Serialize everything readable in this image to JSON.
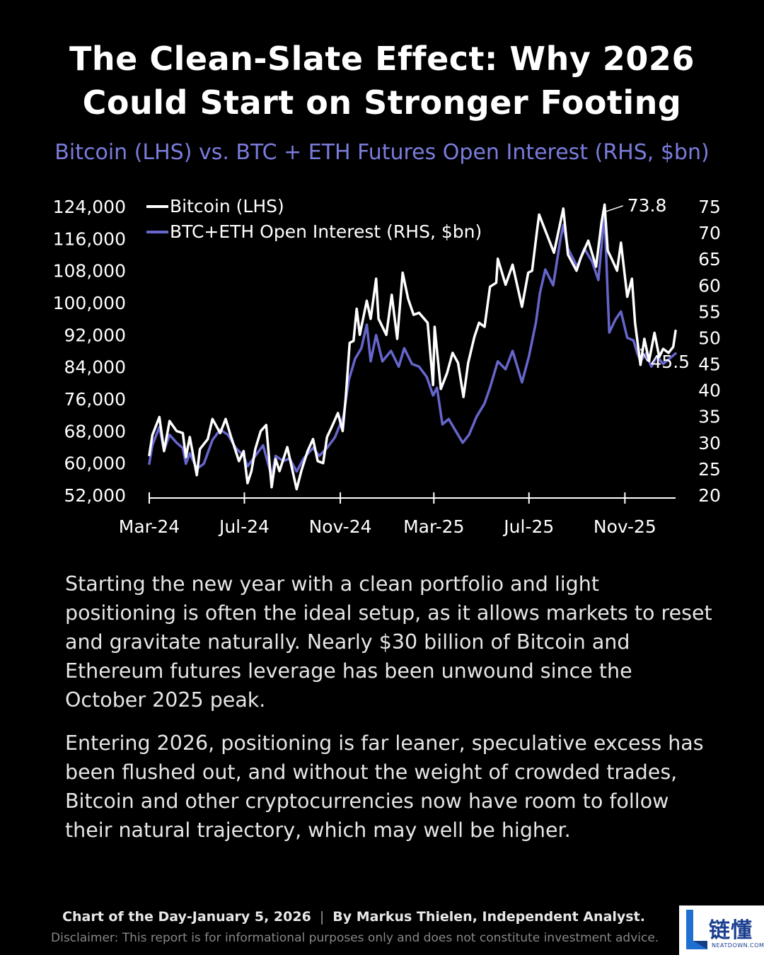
{
  "header": {
    "title_line1": "The Clean-Slate Effect: Why 2026",
    "title_line2": "Could Start on Stronger Footing",
    "subtitle": "Bitcoin (LHS) vs. BTC + ETH Futures Open Interest (RHS, $bn)"
  },
  "colors": {
    "btc": "#ffffff",
    "oi": "#6666cc",
    "subtitle": "#7b7cdc",
    "background": "#000000"
  },
  "chart_data": {
    "type": "line",
    "legend_position": "top-left",
    "grid": false,
    "x_ticks": [
      "Mar-24",
      "Jul-24",
      "Nov-24",
      "Mar-25",
      "Jul-25",
      "Nov-25"
    ],
    "x_range": [
      "2024-03-01",
      "2026-01-05"
    ],
    "y_left": {
      "ticks": [
        "124,000",
        "116,000",
        "108,000",
        "100,000",
        "92,000",
        "84,000",
        "76,000",
        "68,000",
        "60,000",
        "52,000"
      ],
      "range": [
        52000,
        124000
      ]
    },
    "y_right": {
      "ticks": [
        "75",
        "70",
        "65",
        "60",
        "55",
        "50",
        "45",
        "40",
        "35",
        "30",
        "25",
        "20"
      ],
      "range": [
        20,
        75
      ]
    },
    "annotations": [
      {
        "text": "73.8",
        "date": "2025-10-06",
        "series": "BTC+ETH Open Interest (RHS, $bn)",
        "value": 73.8
      },
      {
        "text": "45.5",
        "date": "2025-11-21",
        "series": "BTC+ETH Open Interest (RHS, $bn)",
        "value": 45.5
      }
    ],
    "series": [
      {
        "name": "Bitcoin (LHS)",
        "axis": "left",
        "points": [
          [
            "2024-03-01",
            62000
          ],
          [
            "2024-03-05",
            67000
          ],
          [
            "2024-03-14",
            71500
          ],
          [
            "2024-03-20",
            63000
          ],
          [
            "2024-03-27",
            70500
          ],
          [
            "2024-04-05",
            68000
          ],
          [
            "2024-04-13",
            67500
          ],
          [
            "2024-04-17",
            61500
          ],
          [
            "2024-04-22",
            66500
          ],
          [
            "2024-05-01",
            57000
          ],
          [
            "2024-05-05",
            63500
          ],
          [
            "2024-05-15",
            66000
          ],
          [
            "2024-05-21",
            71000
          ],
          [
            "2024-05-31",
            67500
          ],
          [
            "2024-06-07",
            71000
          ],
          [
            "2024-06-14",
            66500
          ],
          [
            "2024-06-24",
            60500
          ],
          [
            "2024-06-30",
            63000
          ],
          [
            "2024-07-05",
            55000
          ],
          [
            "2024-07-10",
            58000
          ],
          [
            "2024-07-15",
            63500
          ],
          [
            "2024-07-22",
            68000
          ],
          [
            "2024-07-29",
            69500
          ],
          [
            "2024-08-05",
            54000
          ],
          [
            "2024-08-10",
            61000
          ],
          [
            "2024-08-15",
            58000
          ],
          [
            "2024-08-25",
            64000
          ],
          [
            "2024-09-06",
            53500
          ],
          [
            "2024-09-12",
            58000
          ],
          [
            "2024-09-20",
            63000
          ],
          [
            "2024-09-27",
            66000
          ],
          [
            "2024-10-03",
            60500
          ],
          [
            "2024-10-10",
            60000
          ],
          [
            "2024-10-15",
            66500
          ],
          [
            "2024-10-21",
            69000
          ],
          [
            "2024-10-29",
            72500
          ],
          [
            "2024-11-04",
            68000
          ],
          [
            "2024-11-08",
            76500
          ],
          [
            "2024-11-13",
            90000
          ],
          [
            "2024-11-18",
            90500
          ],
          [
            "2024-11-22",
            98500
          ],
          [
            "2024-11-26",
            92000
          ],
          [
            "2024-12-05",
            100500
          ],
          [
            "2024-12-10",
            96000
          ],
          [
            "2024-12-17",
            106000
          ],
          [
            "2024-12-20",
            96000
          ],
          [
            "2024-12-30",
            92000
          ],
          [
            "2025-01-06",
            102000
          ],
          [
            "2025-01-13",
            91000
          ],
          [
            "2025-01-20",
            107500
          ],
          [
            "2025-01-27",
            101000
          ],
          [
            "2025-02-03",
            97000
          ],
          [
            "2025-02-10",
            97500
          ],
          [
            "2025-02-21",
            95000
          ],
          [
            "2025-02-28",
            79500
          ],
          [
            "2025-03-02",
            94000
          ],
          [
            "2025-03-10",
            78500
          ],
          [
            "2025-03-18",
            82500
          ],
          [
            "2025-03-25",
            87500
          ],
          [
            "2025-04-01",
            85000
          ],
          [
            "2025-04-08",
            76500
          ],
          [
            "2025-04-14",
            85000
          ],
          [
            "2025-04-22",
            91500
          ],
          [
            "2025-04-28",
            95000
          ],
          [
            "2025-05-05",
            94000
          ],
          [
            "2025-05-12",
            104000
          ],
          [
            "2025-05-20",
            105000
          ],
          [
            "2025-05-22",
            111000
          ],
          [
            "2025-06-01",
            104500
          ],
          [
            "2025-06-10",
            109500
          ],
          [
            "2025-06-22",
            99000
          ],
          [
            "2025-06-30",
            107500
          ],
          [
            "2025-07-05",
            108000
          ],
          [
            "2025-07-11",
            117500
          ],
          [
            "2025-07-14",
            122000
          ],
          [
            "2025-07-22",
            118000
          ],
          [
            "2025-08-02",
            112500
          ],
          [
            "2025-08-14",
            123500
          ],
          [
            "2025-08-20",
            112000
          ],
          [
            "2025-08-31",
            108000
          ],
          [
            "2025-09-05",
            111000
          ],
          [
            "2025-09-15",
            115500
          ],
          [
            "2025-09-25",
            109000
          ],
          [
            "2025-10-02",
            120000
          ],
          [
            "2025-10-06",
            124500
          ],
          [
            "2025-10-10",
            113000
          ],
          [
            "2025-10-15",
            111000
          ],
          [
            "2025-10-22",
            108000
          ],
          [
            "2025-10-27",
            115000
          ],
          [
            "2025-11-04",
            101500
          ],
          [
            "2025-11-10",
            106000
          ],
          [
            "2025-11-14",
            95000
          ],
          [
            "2025-11-21",
            84500
          ],
          [
            "2025-11-26",
            91000
          ],
          [
            "2025-12-02",
            85500
          ],
          [
            "2025-12-09",
            92500
          ],
          [
            "2025-12-15",
            86500
          ],
          [
            "2025-12-20",
            88500
          ],
          [
            "2025-12-27",
            87500
          ],
          [
            "2026-01-02",
            89000
          ],
          [
            "2026-01-05",
            93000
          ]
        ]
      },
      {
        "name": "BTC+ETH Open Interest (RHS, $bn)",
        "axis": "right",
        "points": [
          [
            "2024-03-01",
            26000
          ],
          [
            "2024-03-05",
            29500
          ],
          [
            "2024-03-14",
            33000
          ],
          [
            "2024-03-20",
            28500
          ],
          [
            "2024-03-27",
            31500
          ],
          [
            "2024-04-05",
            30000
          ],
          [
            "2024-04-13",
            29000
          ],
          [
            "2024-04-17",
            26000
          ],
          [
            "2024-04-22",
            28000
          ],
          [
            "2024-05-01",
            25000
          ],
          [
            "2024-05-10",
            26000
          ],
          [
            "2024-05-21",
            30500
          ],
          [
            "2024-05-31",
            32500
          ],
          [
            "2024-06-10",
            31500
          ],
          [
            "2024-06-20",
            29000
          ],
          [
            "2024-06-30",
            27500
          ],
          [
            "2024-07-05",
            25500
          ],
          [
            "2024-07-15",
            27500
          ],
          [
            "2024-07-25",
            29500
          ],
          [
            "2024-08-05",
            23500
          ],
          [
            "2024-08-10",
            27500
          ],
          [
            "2024-08-20",
            26500
          ],
          [
            "2024-08-28",
            27000
          ],
          [
            "2024-09-06",
            24500
          ],
          [
            "2024-09-15",
            27000
          ],
          [
            "2024-09-27",
            29000
          ],
          [
            "2024-10-05",
            27500
          ],
          [
            "2024-10-15",
            29000
          ],
          [
            "2024-10-25",
            31000
          ],
          [
            "2024-11-05",
            35000
          ],
          [
            "2024-11-12",
            42000
          ],
          [
            "2024-11-20",
            46000
          ],
          [
            "2024-11-28",
            48000
          ],
          [
            "2024-12-05",
            52500
          ],
          [
            "2024-12-10",
            45500
          ],
          [
            "2024-12-17",
            50500
          ],
          [
            "2024-12-25",
            45500
          ],
          [
            "2025-01-05",
            47500
          ],
          [
            "2025-01-15",
            44500
          ],
          [
            "2025-01-22",
            48000
          ],
          [
            "2025-02-01",
            45000
          ],
          [
            "2025-02-10",
            44500
          ],
          [
            "2025-02-20",
            42500
          ],
          [
            "2025-02-28",
            39000
          ],
          [
            "2025-03-05",
            40500
          ],
          [
            "2025-03-12",
            33500
          ],
          [
            "2025-03-20",
            34500
          ],
          [
            "2025-03-28",
            32500
          ],
          [
            "2025-04-07",
            30000
          ],
          [
            "2025-04-15",
            31500
          ],
          [
            "2025-04-25",
            35000
          ],
          [
            "2025-05-05",
            37500
          ],
          [
            "2025-05-12",
            40500
          ],
          [
            "2025-05-22",
            45500
          ],
          [
            "2025-06-01",
            44000
          ],
          [
            "2025-06-10",
            47500
          ],
          [
            "2025-06-22",
            41500
          ],
          [
            "2025-07-01",
            46500
          ],
          [
            "2025-07-10",
            53000
          ],
          [
            "2025-07-15",
            58500
          ],
          [
            "2025-07-22",
            63000
          ],
          [
            "2025-08-01",
            60000
          ],
          [
            "2025-08-10",
            68500
          ],
          [
            "2025-08-14",
            71500
          ],
          [
            "2025-08-20",
            67000
          ],
          [
            "2025-09-01",
            63500
          ],
          [
            "2025-09-10",
            67000
          ],
          [
            "2025-09-20",
            64500
          ],
          [
            "2025-09-28",
            61000
          ],
          [
            "2025-10-06",
            73800
          ],
          [
            "2025-10-10",
            58000
          ],
          [
            "2025-10-12",
            51000
          ],
          [
            "2025-10-20",
            53500
          ],
          [
            "2025-10-27",
            55000
          ],
          [
            "2025-11-04",
            50000
          ],
          [
            "2025-11-12",
            49500
          ],
          [
            "2025-11-17",
            47000
          ],
          [
            "2025-11-21",
            45500
          ],
          [
            "2025-11-28",
            47000
          ],
          [
            "2025-12-05",
            44500
          ],
          [
            "2025-12-12",
            46500
          ],
          [
            "2025-12-20",
            45000
          ],
          [
            "2025-12-28",
            46000
          ],
          [
            "2026-01-05",
            47000
          ]
        ]
      }
    ]
  },
  "body": {
    "paragraph1": "Starting the new year with a clean portfolio and light positioning is often the ideal setup, as it allows markets to reset and gravitate naturally. Nearly $30 billion of Bitcoin and Ethereum futures leverage has been unwound since the October 2025 peak.",
    "paragraph2": "Entering 2026, positioning is far leaner, speculative excess has been flushed out, and without the weight of crowded trades, Bitcoin and other cryptocurrencies now have room to follow their natural trajectory, which may well be higher."
  },
  "footer": {
    "chart_of_day": "Chart of the Day-January 5, 2026",
    "separator": "|",
    "author": "By Markus Thielen, Independent Analyst.",
    "disclaimer": "Disclaimer: This report is for informational purposes only and does not constitute investment advice."
  },
  "logo": {
    "cn_text": "链懂",
    "en_text": "NEATDOWN.COM"
  }
}
